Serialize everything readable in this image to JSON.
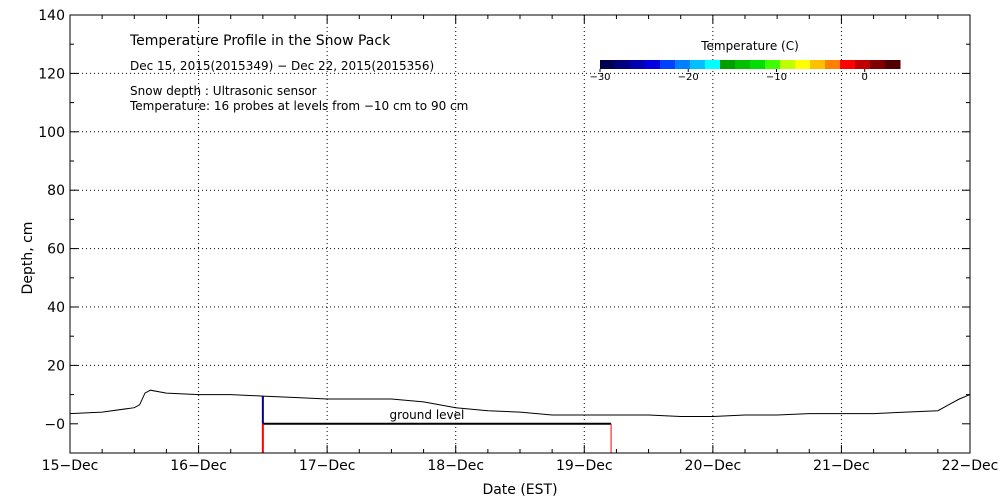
{
  "chart_data": {
    "type": "line",
    "title": "Temperature Profile in the Snow Pack",
    "subtitle": "Dec 15, 2015(2015349) − Dec 22, 2015(2015356)",
    "annotations": [
      "Snow depth : Ultrasonic sensor",
      "Temperature: 16 probes at levels from −10 cm to 90 cm"
    ],
    "xlabel": "Date (EST)",
    "ylabel": "Depth, cm",
    "xlim": [
      "2015-12-15",
      "2015-12-22"
    ],
    "ylim": [
      -10,
      140
    ],
    "x_ticks": [
      "15−Dec",
      "16−Dec",
      "17−Dec",
      "18−Dec",
      "19−Dec",
      "20−Dec",
      "21−Dec",
      "22−Dec"
    ],
    "y_ticks": [
      "−0",
      "20",
      "40",
      "60",
      "80",
      "100",
      "120",
      "140"
    ],
    "grid": "dotted",
    "series": [
      {
        "x": [
          "2015-12-15T00:00",
          "2015-12-15T06:00",
          "2015-12-15T12:00",
          "2015-12-15T13:00",
          "2015-12-15T14:00",
          "2015-12-15T15:00",
          "2015-12-15T18:00",
          "2015-12-16T00:00",
          "2015-12-16T06:00",
          "2015-12-16T12:00",
          "2015-12-16T18:00",
          "2015-12-17T00:00",
          "2015-12-17T06:00",
          "2015-12-17T12:00",
          "2015-12-17T18:00",
          "2015-12-18T00:00",
          "2015-12-18T06:00",
          "2015-12-18T12:00",
          "2015-12-18T18:00",
          "2015-12-19T00:00",
          "2015-12-19T06:00",
          "2015-12-19T12:00",
          "2015-12-19T18:00",
          "2015-12-20T00:00",
          "2015-12-20T06:00",
          "2015-12-20T12:00",
          "2015-12-20T18:00",
          "2015-12-21T00:00",
          "2015-12-21T06:00",
          "2015-12-21T12:00",
          "2015-12-21T18:00",
          "2015-12-21T20:00",
          "2015-12-21T22:00",
          "2015-12-22T00:00"
        ],
        "values": [
          3.5,
          4,
          5.5,
          6.5,
          10.5,
          11.5,
          10.5,
          10,
          10,
          9.5,
          9,
          8.5,
          8.5,
          8.5,
          7.5,
          5.5,
          4.5,
          4,
          3,
          3,
          3,
          3,
          2.5,
          2.5,
          3,
          3,
          3.5,
          3.5,
          3.5,
          4,
          4.5,
          6.5,
          8.5,
          10
        ]
      }
    ],
    "ground_level": {
      "label": "ground level",
      "y": 0,
      "x_start": "2015-12-16T12:00",
      "x_end": "2015-12-19T05:00"
    },
    "colorbar": {
      "title": "Temperature (C)",
      "range": [
        -30,
        4
      ],
      "tick_labels": [
        "−30",
        "−20",
        "−10",
        "0"
      ],
      "colors": [
        "#000050",
        "#000080",
        "#0000b0",
        "#0000e0",
        "#0040ff",
        "#0080ff",
        "#00c0ff",
        "#00ffff",
        "#00a000",
        "#00c000",
        "#00e000",
        "#40ff00",
        "#c0ff00",
        "#ffff00",
        "#ffc000",
        "#ff8000",
        "#ff0000",
        "#c00000",
        "#800000",
        "#500000"
      ]
    }
  }
}
